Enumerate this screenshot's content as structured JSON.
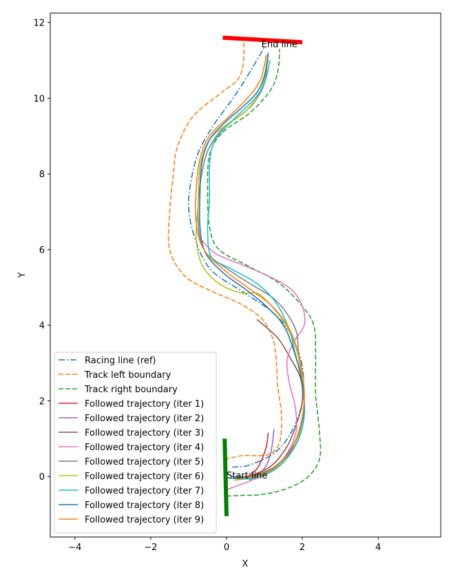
{
  "chart_data": {
    "type": "line",
    "xlabel": "X",
    "ylabel": "Y",
    "xlim": [
      -4.65,
      5.65
    ],
    "ylim": [
      -1.6,
      12.25
    ],
    "xticks": [
      -4,
      -2,
      0,
      2,
      4
    ],
    "yticks": [
      0,
      2,
      4,
      6,
      8,
      10,
      12
    ],
    "legend_position": "lower-left",
    "annotations": {
      "end": {
        "text": "End line",
        "x": 0.92,
        "y": 11.35
      },
      "start": {
        "text": "Start line",
        "x": 0.0,
        "y": -0.05
      }
    },
    "markers": [
      {
        "name": "end-line",
        "color": "#ff0000",
        "width": 6,
        "points": [
          [
            -0.1,
            11.6
          ],
          [
            2.0,
            11.48
          ]
        ]
      },
      {
        "name": "start-line",
        "color": "#008000",
        "width": 6,
        "points": [
          [
            -0.05,
            1.0
          ],
          [
            0.0,
            -1.05
          ]
        ]
      }
    ],
    "series": [
      {
        "name": "Racing line (ref)",
        "color": "#1f77b4",
        "dash": "9,3,2,3",
        "points": [
          [
            0.15,
            0.25
          ],
          [
            0.6,
            0.3
          ],
          [
            1.3,
            0.65
          ],
          [
            1.75,
            1.25
          ],
          [
            2.0,
            2.0
          ],
          [
            2.0,
            2.9
          ],
          [
            1.7,
            3.75
          ],
          [
            1.2,
            4.35
          ],
          [
            0.4,
            4.9
          ],
          [
            -0.4,
            5.45
          ],
          [
            -0.8,
            6.2
          ],
          [
            -1.0,
            7.2
          ],
          [
            -0.8,
            8.4
          ],
          [
            -0.4,
            9.2
          ],
          [
            0.1,
            9.9
          ],
          [
            0.5,
            10.5
          ],
          [
            1.0,
            11.35
          ]
        ]
      },
      {
        "name": "Track left boundary",
        "color": "#ff7f0e",
        "dash": "7,3",
        "points": [
          [
            -0.05,
            0.45
          ],
          [
            0.4,
            0.55
          ],
          [
            0.8,
            0.55
          ],
          [
            1.15,
            0.6
          ],
          [
            1.4,
            0.9
          ],
          [
            1.45,
            1.6
          ],
          [
            1.35,
            2.4
          ],
          [
            1.3,
            3.2
          ],
          [
            1.2,
            3.7
          ],
          [
            0.9,
            4.2
          ],
          [
            0.3,
            4.6
          ],
          [
            -0.4,
            4.9
          ],
          [
            -1.1,
            5.3
          ],
          [
            -1.5,
            6.0
          ],
          [
            -1.5,
            7.0
          ],
          [
            -1.4,
            8.0
          ],
          [
            -1.3,
            8.7
          ],
          [
            -0.9,
            9.5
          ],
          [
            -0.2,
            10.1
          ],
          [
            0.3,
            10.5
          ],
          [
            0.45,
            11.0
          ],
          [
            0.45,
            11.6
          ]
        ]
      },
      {
        "name": "Track right boundary",
        "color": "#2ca02c",
        "dash": "7,3",
        "points": [
          [
            0.0,
            -0.52
          ],
          [
            0.4,
            -0.5
          ],
          [
            0.9,
            -0.48
          ],
          [
            1.5,
            -0.35
          ],
          [
            2.1,
            -0.05
          ],
          [
            2.45,
            0.45
          ],
          [
            2.45,
            1.2
          ],
          [
            2.35,
            2.2
          ],
          [
            2.35,
            3.3
          ],
          [
            2.3,
            4.0
          ],
          [
            2.0,
            4.5
          ],
          [
            1.4,
            5.1
          ],
          [
            0.6,
            5.55
          ],
          [
            -0.2,
            6.0
          ],
          [
            -0.45,
            6.6
          ],
          [
            -0.5,
            7.5
          ],
          [
            -0.45,
            8.5
          ],
          [
            -0.1,
            9.1
          ],
          [
            0.6,
            9.6
          ],
          [
            1.15,
            10.2
          ],
          [
            1.35,
            10.7
          ],
          [
            1.4,
            11.3
          ]
        ]
      },
      {
        "name": "Followed trajectory (iter 1)",
        "color": "#d62728",
        "dash": "",
        "points": [
          [
            0.6,
            0.05
          ],
          [
            0.8,
            0.2
          ],
          [
            0.95,
            0.5
          ],
          [
            1.05,
            0.8
          ],
          [
            1.1,
            1.15
          ]
        ]
      },
      {
        "name": "Followed trajectory (iter 2)",
        "color": "#9467bd",
        "dash": "",
        "points": [
          [
            0.6,
            -0.1
          ],
          [
            0.9,
            0.1
          ],
          [
            1.1,
            0.4
          ],
          [
            1.2,
            0.8
          ],
          [
            1.25,
            1.25
          ]
        ]
      },
      {
        "name": "Followed trajectory (iter 3)",
        "color": "#8c564b",
        "dash": "",
        "points": [
          [
            0.2,
            -0.05
          ],
          [
            0.7,
            0.05
          ],
          [
            1.2,
            0.3
          ],
          [
            1.6,
            0.8
          ],
          [
            1.85,
            1.4
          ],
          [
            2.0,
            2.0
          ],
          [
            1.95,
            2.6
          ],
          [
            1.7,
            3.1
          ],
          [
            1.4,
            3.6
          ],
          [
            1.1,
            3.9
          ],
          [
            0.8,
            4.15
          ]
        ]
      },
      {
        "name": "Followed trajectory (iter 4)",
        "color": "#e377c2",
        "dash": "",
        "points": [
          [
            0.0,
            -0.35
          ],
          [
            0.4,
            -0.2
          ],
          [
            0.9,
            0.0
          ],
          [
            1.35,
            0.3
          ],
          [
            1.7,
            0.8
          ],
          [
            1.85,
            1.3
          ],
          [
            1.8,
            1.9
          ],
          [
            1.65,
            2.5
          ],
          [
            1.6,
            3.1
          ],
          [
            1.8,
            3.6
          ],
          [
            2.05,
            4.0
          ],
          [
            2.0,
            4.5
          ],
          [
            1.7,
            4.95
          ],
          [
            1.1,
            5.3
          ],
          [
            0.4,
            5.6
          ],
          [
            -0.3,
            5.9
          ],
          [
            -0.7,
            6.3
          ]
        ]
      },
      {
        "name": "Followed trajectory (iter 5)",
        "color": "#7f7f7f",
        "dash": "",
        "points": [
          [
            0.3,
            -0.05
          ],
          [
            0.8,
            0.05
          ],
          [
            1.4,
            0.35
          ],
          [
            1.85,
            0.9
          ],
          [
            2.05,
            1.6
          ],
          [
            2.0,
            2.4
          ],
          [
            1.9,
            3.2
          ],
          [
            1.85,
            3.8
          ],
          [
            1.6,
            4.3
          ],
          [
            1.25,
            4.7
          ],
          [
            0.7,
            5.05
          ],
          [
            0.0,
            5.5
          ],
          [
            -0.6,
            6.0
          ],
          [
            -0.75,
            6.8
          ],
          [
            -0.7,
            7.7
          ],
          [
            -0.5,
            8.6
          ],
          [
            -0.1,
            9.2
          ],
          [
            0.3,
            9.5
          ],
          [
            0.7,
            9.85
          ],
          [
            1.0,
            10.4
          ],
          [
            1.1,
            11.2
          ]
        ]
      },
      {
        "name": "Followed trajectory (iter 6)",
        "color": "#bcbd22",
        "dash": "",
        "points": [
          [
            0.2,
            -0.1
          ],
          [
            0.8,
            0.0
          ],
          [
            1.4,
            0.3
          ],
          [
            1.8,
            0.8
          ],
          [
            2.0,
            1.5
          ],
          [
            2.05,
            2.2
          ],
          [
            1.95,
            2.9
          ],
          [
            1.8,
            3.5
          ],
          [
            1.5,
            4.1
          ],
          [
            1.1,
            4.6
          ],
          [
            0.8,
            4.85
          ],
          [
            0.4,
            4.85
          ],
          [
            -0.2,
            5.1
          ],
          [
            -0.65,
            5.6
          ],
          [
            -0.8,
            6.3
          ],
          [
            -0.75,
            7.2
          ],
          [
            -0.7,
            8.2
          ],
          [
            -0.45,
            8.9
          ],
          [
            0.0,
            9.3
          ],
          [
            0.5,
            9.65
          ],
          [
            0.9,
            10.2
          ],
          [
            1.1,
            11.0
          ]
        ]
      },
      {
        "name": "Followed trajectory (iter 7)",
        "color": "#17becf",
        "dash": "",
        "points": [
          [
            0.1,
            -0.05
          ],
          [
            0.7,
            -0.05
          ],
          [
            1.3,
            0.2
          ],
          [
            1.75,
            0.7
          ],
          [
            2.0,
            1.3
          ],
          [
            2.05,
            2.0
          ],
          [
            1.95,
            2.7
          ],
          [
            1.8,
            3.3
          ],
          [
            1.65,
            3.9
          ],
          [
            1.3,
            4.6
          ],
          [
            0.8,
            5.1
          ],
          [
            0.1,
            5.5
          ],
          [
            -0.4,
            5.8
          ],
          [
            -0.5,
            6.5
          ],
          [
            -0.45,
            7.3
          ],
          [
            -0.45,
            8.2
          ],
          [
            -0.35,
            8.8
          ],
          [
            -0.05,
            9.2
          ],
          [
            0.35,
            9.6
          ],
          [
            0.75,
            10.0
          ],
          [
            1.0,
            10.4
          ],
          [
            1.15,
            11.0
          ]
        ]
      },
      {
        "name": "Followed trajectory (iter 8)",
        "color": "#1f77b4",
        "dash": "",
        "points": [
          [
            0.15,
            0.0
          ],
          [
            0.7,
            0.0
          ],
          [
            1.2,
            0.2
          ],
          [
            1.65,
            0.65
          ],
          [
            1.95,
            1.3
          ],
          [
            2.05,
            2.0
          ],
          [
            1.95,
            2.7
          ],
          [
            1.75,
            3.4
          ],
          [
            1.5,
            4.0
          ],
          [
            1.05,
            4.5
          ],
          [
            0.5,
            4.95
          ],
          [
            -0.05,
            5.35
          ],
          [
            -0.55,
            5.9
          ],
          [
            -0.7,
            6.6
          ],
          [
            -0.7,
            7.5
          ],
          [
            -0.65,
            8.3
          ],
          [
            -0.45,
            8.9
          ],
          [
            -0.05,
            9.35
          ],
          [
            0.4,
            9.75
          ],
          [
            0.8,
            10.15
          ],
          [
            1.0,
            10.6
          ],
          [
            1.1,
            11.2
          ]
        ]
      },
      {
        "name": "Followed trajectory (iter 9)",
        "color": "#ff7f0e",
        "dash": "",
        "points": [
          [
            0.2,
            -0.05
          ],
          [
            0.75,
            0.0
          ],
          [
            1.25,
            0.25
          ],
          [
            1.7,
            0.7
          ],
          [
            1.95,
            1.35
          ],
          [
            2.05,
            2.05
          ],
          [
            2.0,
            2.75
          ],
          [
            1.85,
            3.4
          ],
          [
            1.6,
            4.0
          ],
          [
            1.15,
            4.55
          ],
          [
            0.55,
            5.0
          ],
          [
            -0.05,
            5.45
          ],
          [
            -0.6,
            6.0
          ],
          [
            -0.8,
            6.7
          ],
          [
            -0.8,
            7.6
          ],
          [
            -0.7,
            8.4
          ],
          [
            -0.45,
            9.0
          ],
          [
            0.05,
            9.5
          ],
          [
            0.55,
            10.0
          ],
          [
            0.9,
            10.5
          ],
          [
            1.05,
            11.15
          ]
        ]
      }
    ]
  }
}
